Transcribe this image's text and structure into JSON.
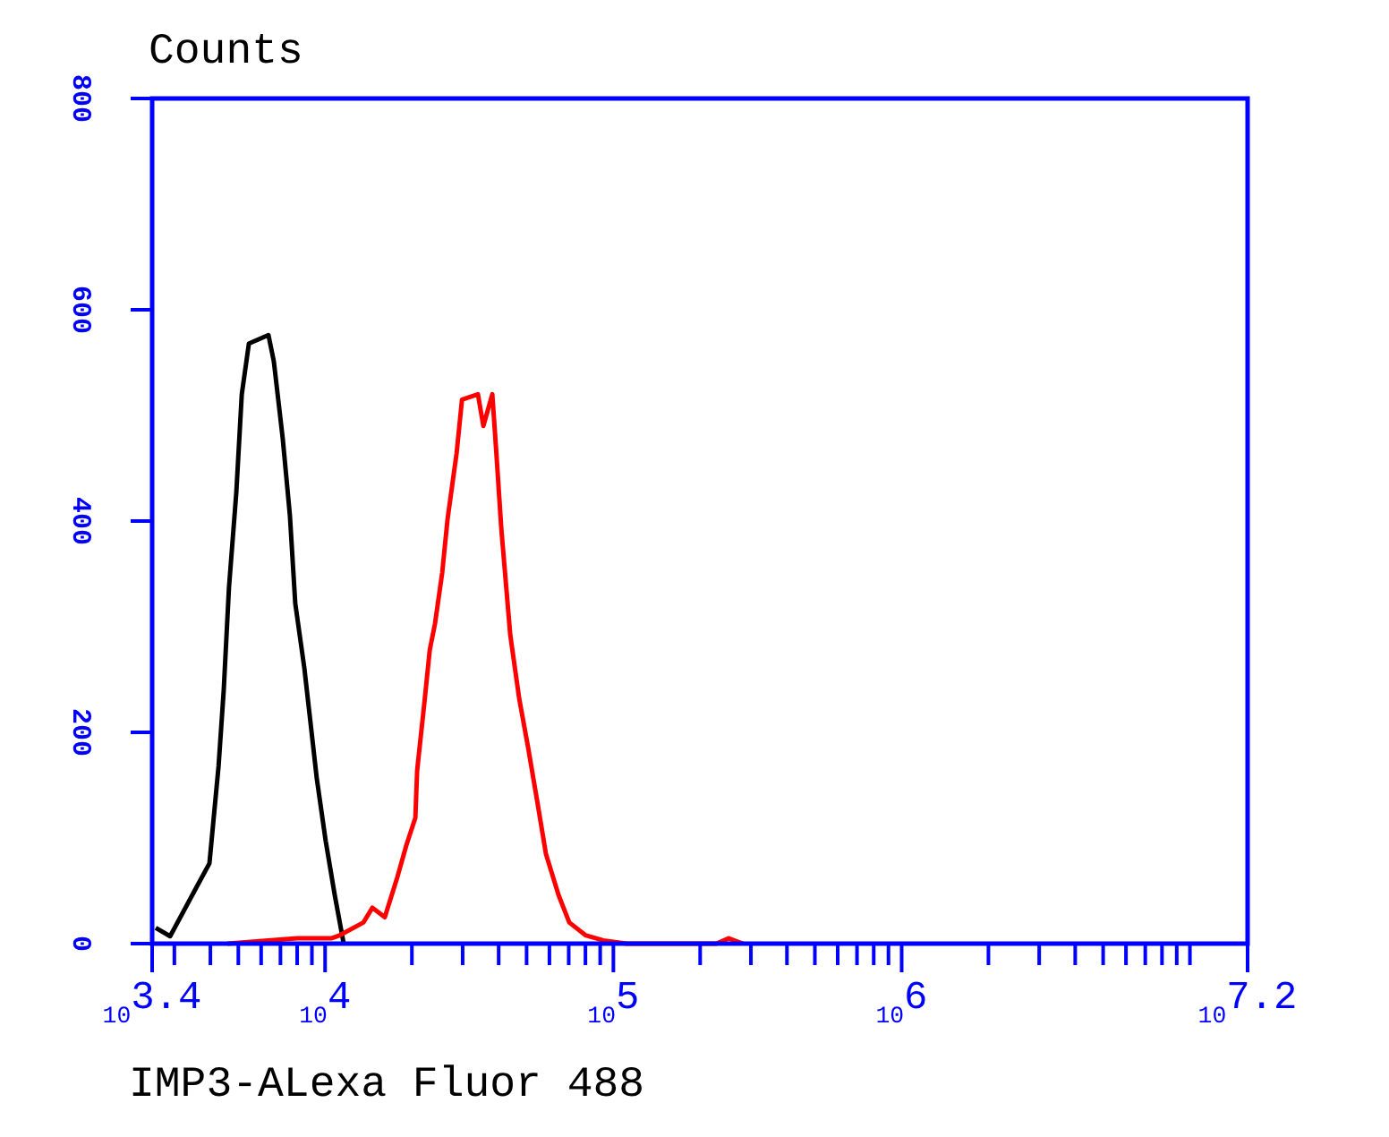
{
  "chart_data": {
    "type": "line",
    "ylabel": "Counts",
    "xlabel": "IMP3-ALexa Fluor 488",
    "log": "x",
    "xlim": [
      2512,
      15850000
    ],
    "ylim": [
      0,
      800
    ],
    "yticks": [
      0,
      200,
      400,
      600,
      800
    ],
    "xticks": [
      {
        "value": 2512,
        "label": "10$^{3.4}$"
      },
      {
        "value": 3000,
        "label": null
      },
      {
        "value": 4000,
        "label": null
      },
      {
        "value": 5000,
        "label": null
      },
      {
        "value": 6000,
        "label": null
      },
      {
        "value": 7000,
        "label": null
      },
      {
        "value": 8000,
        "label": null
      },
      {
        "value": 9000,
        "label": null
      },
      {
        "value": 10000,
        "label": "10$^{4}$"
      },
      {
        "value": 20000,
        "label": null
      },
      {
        "value": 30000,
        "label": null
      },
      {
        "value": 40000,
        "label": null
      },
      {
        "value": 50000,
        "label": null
      },
      {
        "value": 60000,
        "label": null
      },
      {
        "value": 70000,
        "label": null
      },
      {
        "value": 80000,
        "label": null
      },
      {
        "value": 90000,
        "label": null
      },
      {
        "value": 100000,
        "label": "10$^{5}$"
      },
      {
        "value": 200000,
        "label": null
      },
      {
        "value": 300000,
        "label": null
      },
      {
        "value": 400000,
        "label": null
      },
      {
        "value": 500000,
        "label": null
      },
      {
        "value": 600000,
        "label": null
      },
      {
        "value": 700000,
        "label": null
      },
      {
        "value": 800000,
        "label": null
      },
      {
        "value": 900000,
        "label": null
      },
      {
        "value": 1000000,
        "label": "10$^{6}$"
      },
      {
        "value": 2000000,
        "label": null
      },
      {
        "value": 3000000,
        "label": null
      },
      {
        "value": 4000000,
        "label": null
      },
      {
        "value": 5000000,
        "label": null
      },
      {
        "value": 6000000,
        "label": null
      },
      {
        "value": 7000000,
        "label": null
      },
      {
        "value": 8000000,
        "label": null
      },
      {
        "value": 9000000,
        "label": null
      },
      {
        "value": 10000000,
        "label": null
      },
      {
        "value": 15850000,
        "label": "10$^{7.2}$"
      }
    ],
    "grid": false,
    "marker": "none",
    "line_style": "solid",
    "series": [
      {
        "color": "#000000",
        "x": [
          2585,
          2900,
          3590,
          3970,
          4270,
          4450,
          4640,
          4920,
          5140,
          5440,
          6360,
          6640,
          7130,
          7550,
          7880,
          8470,
          8850,
          9360,
          10050,
          10800,
          11600
        ],
        "values": [
          15,
          7,
          54,
          76,
          168,
          240,
          337,
          427,
          520,
          568,
          576,
          551,
          478,
          405,
          322,
          261,
          215,
          156,
          97,
          46,
          0
        ]
      },
      {
        "color": "#ff0000",
        "x": [
          4580,
          8000,
          10500,
          11270,
          13580,
          14590,
          16110,
          17810,
          19130,
          20560,
          20860,
          22080,
          23070,
          24060,
          25480,
          26600,
          28580,
          29850,
          33900,
          35400,
          38020,
          39170,
          40850,
          43890,
          47130,
          50580,
          54330,
          58340,
          64540,
          70310,
          79980,
          92260,
          111200,
          227500,
          251200,
          281800
        ],
        "values": [
          0,
          5,
          5,
          8,
          20,
          34,
          25,
          63,
          93,
          119,
          164,
          227,
          278,
          303,
          351,
          402,
          464,
          515,
          520,
          490,
          520,
          469,
          393,
          292,
          232,
          186,
          136,
          85,
          46,
          20,
          8,
          3,
          0,
          0,
          5,
          0
        ]
      }
    ]
  }
}
